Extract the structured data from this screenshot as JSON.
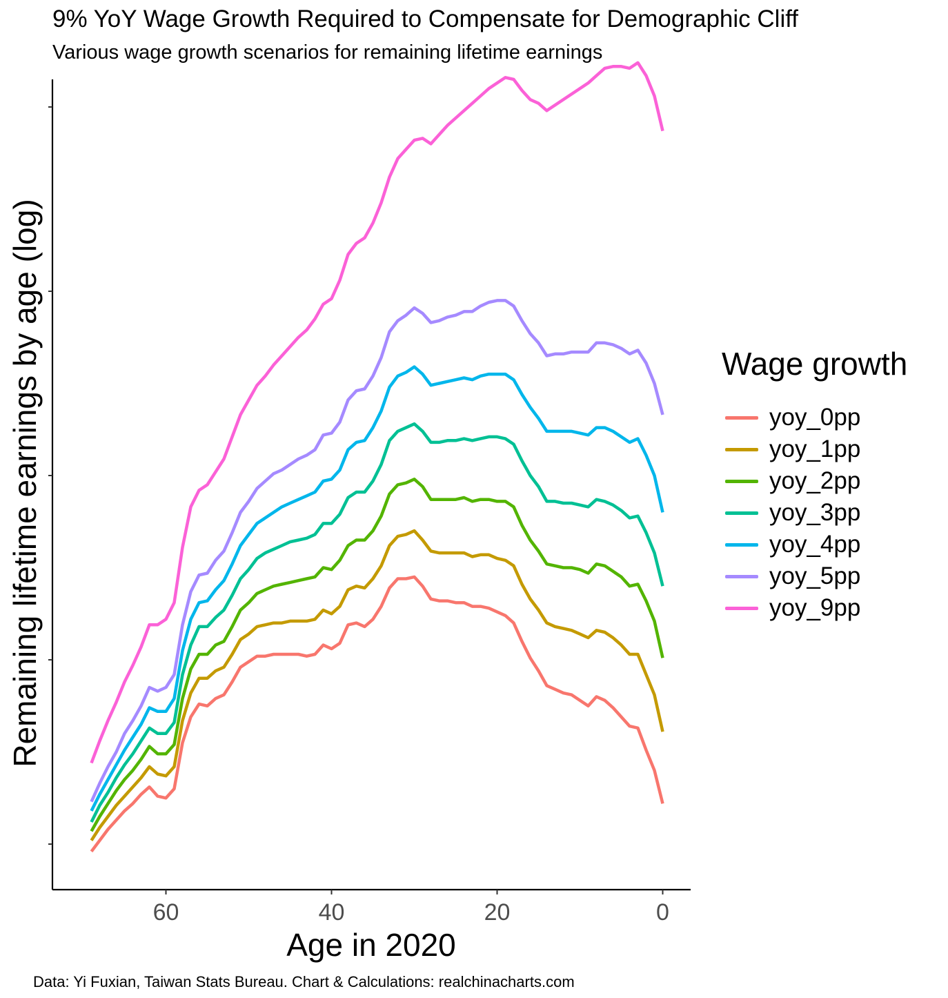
{
  "title": "9% YoY Wage Growth Required to Compensate for Demographic Cliff",
  "subtitle": "Various wage growth scenarios for remaining lifetime earnings",
  "caption": "Data: Yi Fuxian, Taiwan Stats Bureau. Chart & Calculations: realchinacharts.com",
  "chart_data": {
    "type": "line",
    "title": "9% YoY Wage Growth Required to Compensate for Demographic Cliff",
    "subtitle": "Various wage growth scenarios for remaining lifetime earnings",
    "xlabel": "Age in 2020",
    "ylabel": "Remaining lifetime earnings by age (log)",
    "x_reversed": true,
    "x_ticks": [
      60,
      40,
      20,
      0
    ],
    "xlim": [
      72,
      -3.5
    ],
    "y_scale": "log",
    "y_tick_labels_shown": false,
    "ylim": [
      -1.2,
      3.2
    ],
    "y_ticks": [
      -1,
      0,
      1,
      2,
      3
    ],
    "grid": false,
    "legend_title": "Wage growth",
    "legend_position": "right",
    "x": [
      69,
      68,
      67,
      66,
      65,
      64,
      63,
      62,
      61,
      60,
      59,
      58,
      57,
      56,
      55,
      54,
      53,
      52,
      51,
      50,
      49,
      48,
      47,
      46,
      45,
      44,
      43,
      42,
      41,
      40,
      39,
      38,
      37,
      36,
      35,
      34,
      33,
      32,
      31,
      30,
      29,
      28,
      27,
      26,
      25,
      24,
      23,
      22,
      21,
      20,
      19,
      18,
      17,
      16,
      15,
      14,
      13,
      12,
      11,
      10,
      9,
      8,
      7,
      6,
      5,
      4,
      3,
      2,
      1,
      0
    ],
    "series": [
      {
        "name": "yoy_0pp",
        "color": "#F8766D",
        "values": [
          -1.04,
          -0.98,
          -0.92,
          -0.87,
          -0.82,
          -0.78,
          -0.73,
          -0.69,
          -0.74,
          -0.75,
          -0.7,
          -0.45,
          -0.31,
          -0.24,
          -0.25,
          -0.21,
          -0.19,
          -0.12,
          -0.04,
          -0.01,
          0.02,
          0.02,
          0.03,
          0.03,
          0.03,
          0.03,
          0.02,
          0.03,
          0.08,
          0.06,
          0.09,
          0.19,
          0.2,
          0.18,
          0.22,
          0.29,
          0.39,
          0.44,
          0.44,
          0.45,
          0.4,
          0.33,
          0.32,
          0.32,
          0.31,
          0.31,
          0.29,
          0.29,
          0.28,
          0.26,
          0.24,
          0.2,
          0.1,
          0.01,
          -0.06,
          -0.14,
          -0.16,
          -0.18,
          -0.19,
          -0.22,
          -0.25,
          -0.2,
          -0.22,
          -0.26,
          -0.31,
          -0.36,
          -0.37,
          -0.49,
          -0.6,
          -0.78
        ]
      },
      {
        "name": "yoy_1pp",
        "color": "#C49A00",
        "values": [
          -0.98,
          -0.91,
          -0.85,
          -0.79,
          -0.74,
          -0.69,
          -0.64,
          -0.58,
          -0.62,
          -0.63,
          -0.58,
          -0.33,
          -0.18,
          -0.1,
          -0.1,
          -0.06,
          -0.04,
          0.03,
          0.11,
          0.14,
          0.18,
          0.19,
          0.2,
          0.2,
          0.21,
          0.21,
          0.21,
          0.22,
          0.27,
          0.25,
          0.29,
          0.38,
          0.4,
          0.39,
          0.44,
          0.51,
          0.62,
          0.67,
          0.68,
          0.7,
          0.65,
          0.59,
          0.58,
          0.58,
          0.58,
          0.58,
          0.56,
          0.57,
          0.57,
          0.55,
          0.54,
          0.51,
          0.41,
          0.33,
          0.27,
          0.2,
          0.18,
          0.17,
          0.16,
          0.14,
          0.12,
          0.16,
          0.15,
          0.12,
          0.08,
          0.03,
          0.03,
          -0.08,
          -0.19,
          -0.39
        ]
      },
      {
        "name": "yoy_2pp",
        "color": "#53B400",
        "values": [
          -0.93,
          -0.85,
          -0.78,
          -0.71,
          -0.65,
          -0.6,
          -0.54,
          -0.47,
          -0.51,
          -0.51,
          -0.46,
          -0.21,
          -0.05,
          0.03,
          0.03,
          0.08,
          0.1,
          0.18,
          0.27,
          0.31,
          0.36,
          0.38,
          0.4,
          0.41,
          0.42,
          0.43,
          0.44,
          0.45,
          0.5,
          0.49,
          0.54,
          0.62,
          0.65,
          0.65,
          0.7,
          0.78,
          0.9,
          0.95,
          0.96,
          0.98,
          0.94,
          0.87,
          0.87,
          0.87,
          0.87,
          0.88,
          0.86,
          0.87,
          0.87,
          0.86,
          0.86,
          0.83,
          0.73,
          0.65,
          0.59,
          0.52,
          0.51,
          0.5,
          0.5,
          0.49,
          0.47,
          0.52,
          0.51,
          0.48,
          0.45,
          0.4,
          0.41,
          0.32,
          0.21,
          0.01
        ]
      },
      {
        "name": "yoy_3pp",
        "color": "#00C094",
        "values": [
          -0.88,
          -0.79,
          -0.72,
          -0.64,
          -0.57,
          -0.51,
          -0.44,
          -0.37,
          -0.4,
          -0.4,
          -0.34,
          -0.08,
          0.08,
          0.18,
          0.18,
          0.23,
          0.27,
          0.35,
          0.44,
          0.49,
          0.55,
          0.58,
          0.6,
          0.62,
          0.64,
          0.65,
          0.66,
          0.68,
          0.74,
          0.74,
          0.79,
          0.88,
          0.91,
          0.91,
          0.97,
          1.06,
          1.19,
          1.24,
          1.26,
          1.28,
          1.24,
          1.18,
          1.18,
          1.19,
          1.19,
          1.2,
          1.19,
          1.2,
          1.21,
          1.21,
          1.2,
          1.17,
          1.08,
          1.0,
          0.94,
          0.86,
          0.86,
          0.85,
          0.85,
          0.84,
          0.83,
          0.87,
          0.86,
          0.84,
          0.81,
          0.77,
          0.78,
          0.69,
          0.58,
          0.4
        ]
      },
      {
        "name": "yoy_4pp",
        "color": "#00B6EB",
        "values": [
          -0.82,
          -0.73,
          -0.65,
          -0.57,
          -0.49,
          -0.42,
          -0.35,
          -0.26,
          -0.28,
          -0.28,
          -0.21,
          0.05,
          0.22,
          0.31,
          0.32,
          0.38,
          0.43,
          0.52,
          0.62,
          0.68,
          0.74,
          0.77,
          0.8,
          0.83,
          0.85,
          0.87,
          0.89,
          0.91,
          0.97,
          0.98,
          1.03,
          1.14,
          1.18,
          1.19,
          1.26,
          1.35,
          1.48,
          1.54,
          1.56,
          1.59,
          1.55,
          1.49,
          1.5,
          1.51,
          1.52,
          1.53,
          1.52,
          1.54,
          1.55,
          1.55,
          1.55,
          1.52,
          1.44,
          1.37,
          1.31,
          1.24,
          1.24,
          1.24,
          1.24,
          1.23,
          1.22,
          1.26,
          1.26,
          1.24,
          1.21,
          1.18,
          1.2,
          1.11,
          1.0,
          0.8
        ]
      },
      {
        "name": "yoy_5pp",
        "color": "#A58AFF",
        "values": [
          -0.77,
          -0.67,
          -0.58,
          -0.5,
          -0.4,
          -0.33,
          -0.25,
          -0.15,
          -0.17,
          -0.15,
          -0.08,
          0.19,
          0.37,
          0.46,
          0.47,
          0.54,
          0.59,
          0.69,
          0.8,
          0.86,
          0.93,
          0.97,
          1.01,
          1.03,
          1.06,
          1.09,
          1.11,
          1.14,
          1.22,
          1.23,
          1.29,
          1.41,
          1.46,
          1.47,
          1.54,
          1.64,
          1.78,
          1.84,
          1.87,
          1.91,
          1.88,
          1.83,
          1.84,
          1.86,
          1.87,
          1.89,
          1.89,
          1.92,
          1.94,
          1.95,
          1.95,
          1.92,
          1.84,
          1.77,
          1.72,
          1.65,
          1.66,
          1.66,
          1.67,
          1.67,
          1.67,
          1.72,
          1.72,
          1.71,
          1.69,
          1.66,
          1.68,
          1.61,
          1.5,
          1.33
        ]
      },
      {
        "name": "yoy_9pp",
        "color": "#FB61D7",
        "values": [
          -0.56,
          -0.44,
          -0.33,
          -0.23,
          -0.12,
          -0.03,
          0.07,
          0.19,
          0.19,
          0.22,
          0.31,
          0.61,
          0.83,
          0.92,
          0.95,
          1.02,
          1.09,
          1.21,
          1.33,
          1.41,
          1.49,
          1.54,
          1.6,
          1.65,
          1.7,
          1.75,
          1.79,
          1.85,
          1.93,
          1.96,
          2.06,
          2.2,
          2.26,
          2.29,
          2.37,
          2.48,
          2.62,
          2.72,
          2.77,
          2.82,
          2.83,
          2.8,
          2.85,
          2.9,
          2.94,
          2.98,
          3.02,
          3.06,
          3.1,
          3.13,
          3.16,
          3.15,
          3.09,
          3.04,
          3.02,
          2.98,
          3.01,
          3.04,
          3.07,
          3.1,
          3.13,
          3.17,
          3.21,
          3.22,
          3.22,
          3.21,
          3.24,
          3.17,
          3.06,
          2.87
        ]
      }
    ]
  }
}
